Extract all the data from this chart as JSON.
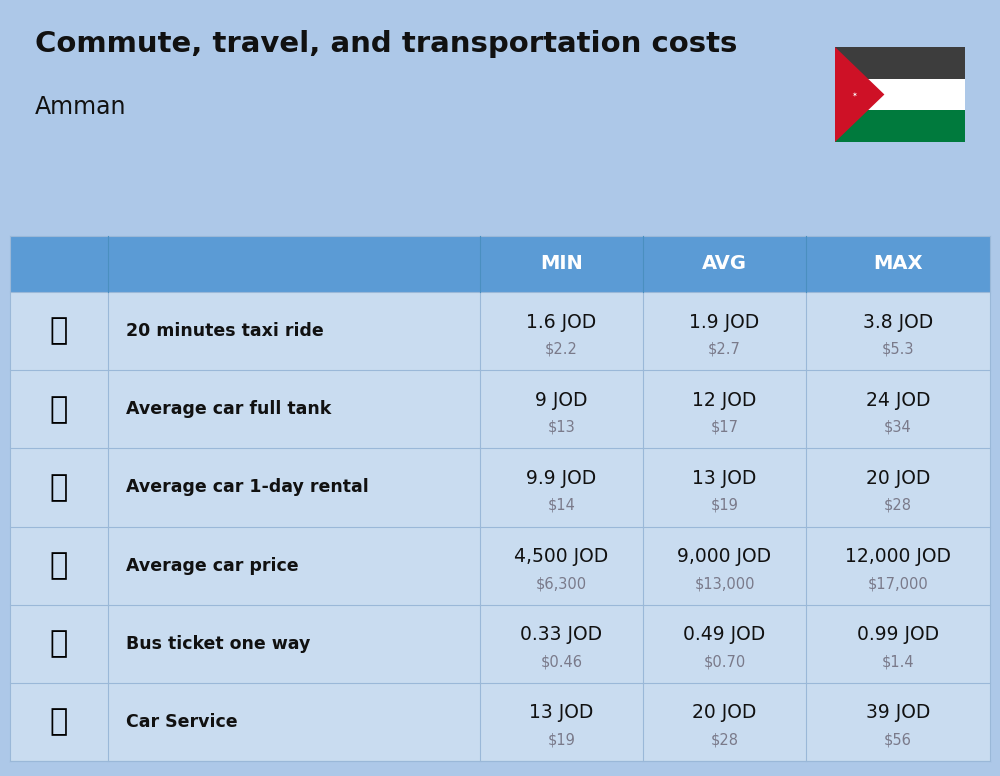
{
  "title": "Commute, travel, and transportation costs",
  "subtitle": "Amman",
  "bg_color": "#adc8e8",
  "header_bg": "#5b9bd5",
  "header_text_color": "#ffffff",
  "row_bg": "#c9dcf0",
  "divider_color": "#9ab8d8",
  "col_headers": [
    "MIN",
    "AVG",
    "MAX"
  ],
  "rows": [
    {
      "label": "20 minutes taxi ride",
      "min_jod": "1.6 JOD",
      "min_usd": "$2.2",
      "avg_jod": "1.9 JOD",
      "avg_usd": "$2.7",
      "max_jod": "3.8 JOD",
      "max_usd": "$5.3"
    },
    {
      "label": "Average car full tank",
      "min_jod": "9 JOD",
      "min_usd": "$13",
      "avg_jod": "12 JOD",
      "avg_usd": "$17",
      "max_jod": "24 JOD",
      "max_usd": "$34"
    },
    {
      "label": "Average car 1-day rental",
      "min_jod": "9.9 JOD",
      "min_usd": "$14",
      "avg_jod": "13 JOD",
      "avg_usd": "$19",
      "max_jod": "20 JOD",
      "max_usd": "$28"
    },
    {
      "label": "Average car price",
      "min_jod": "4,500 JOD",
      "min_usd": "$6,300",
      "avg_jod": "9,000 JOD",
      "avg_usd": "$13,000",
      "max_jod": "12,000 JOD",
      "max_usd": "$17,000"
    },
    {
      "label": "Bus ticket one way",
      "min_jod": "0.33 JOD",
      "min_usd": "$0.46",
      "avg_jod": "0.49 JOD",
      "avg_usd": "$0.70",
      "max_jod": "0.99 JOD",
      "max_usd": "$1.4"
    },
    {
      "label": "Car Service",
      "min_jod": "13 JOD",
      "min_usd": "$19",
      "avg_jod": "20 JOD",
      "avg_usd": "$28",
      "max_jod": "39 JOD",
      "max_usd": "$56"
    }
  ],
  "flag": {
    "black": "#3d3d3d",
    "white": "#ffffff",
    "green": "#007a3d",
    "red": "#ce1126"
  }
}
